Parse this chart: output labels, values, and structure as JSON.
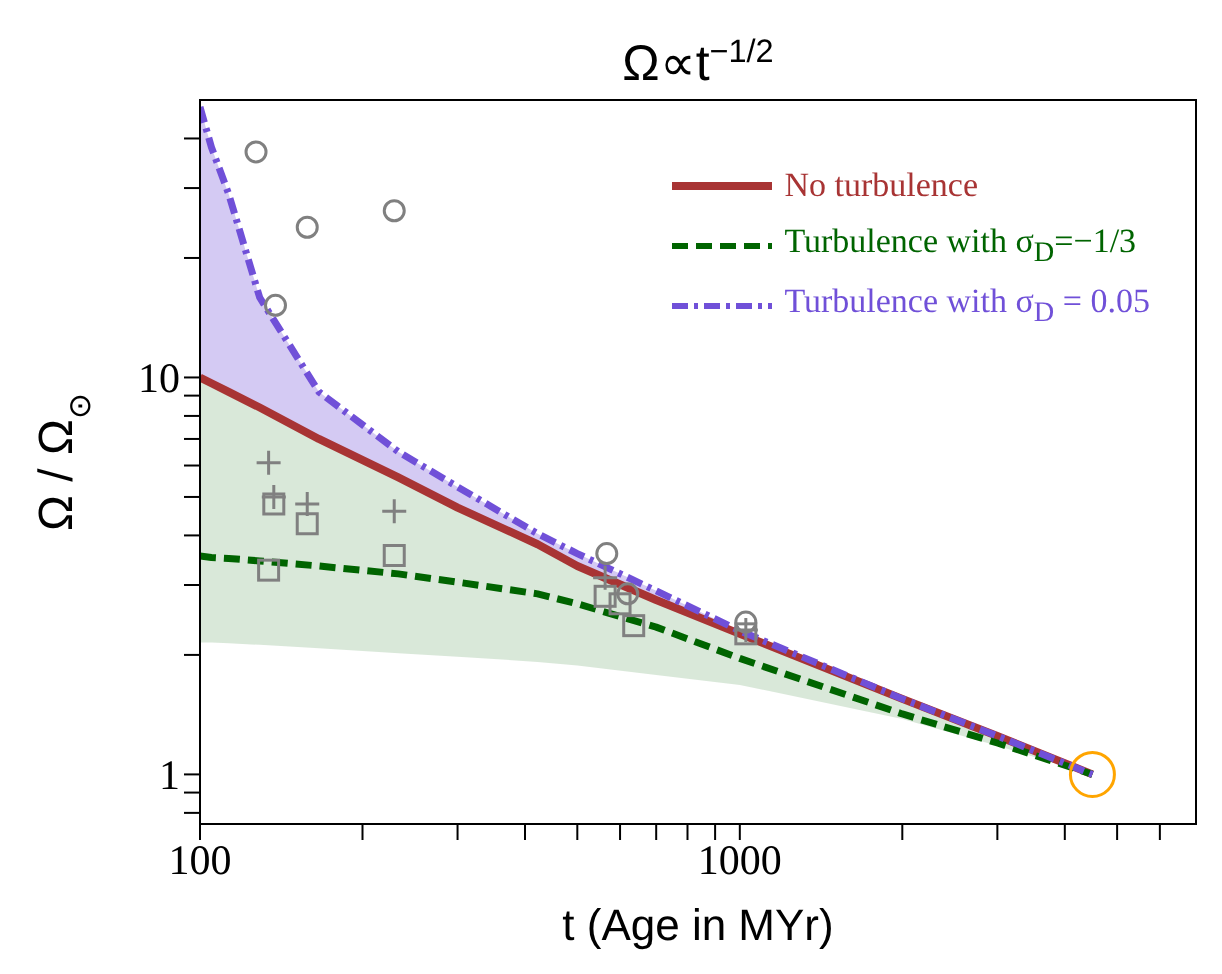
{
  "chart_data": {
    "type": "line",
    "title": "Ω∝t$^{−1/2}$",
    "xlabel": "t (Age in MYr)",
    "ylabel": "Ω / Ω$_{⊙}$",
    "log": "xy",
    "grid": false,
    "legend": "top right",
    "xlim": [
      100,
      7000
    ],
    "ylim": [
      0.75,
      50
    ],
    "xticks": [
      100,
      {
        "value": 200,
        "label": null
      },
      {
        "value": 300,
        "label": null
      },
      {
        "value": 400,
        "label": null
      },
      {
        "value": 500,
        "label": null
      },
      {
        "value": 600,
        "label": null
      },
      {
        "value": 700,
        "label": null
      },
      {
        "value": 800,
        "label": null
      },
      {
        "value": 900,
        "label": null
      },
      1000,
      {
        "value": 2000,
        "label": null
      },
      {
        "value": 3000,
        "label": null
      },
      {
        "value": 4000,
        "label": null
      },
      {
        "value": 5000,
        "label": null
      },
      {
        "value": 6000,
        "label": null
      }
    ],
    "yticks": [
      {
        "value": 0.8,
        "label": null
      },
      {
        "value": 0.9,
        "label": null
      },
      1,
      {
        "value": 2,
        "label": null
      },
      {
        "value": 3,
        "label": null
      },
      {
        "value": 4,
        "label": null
      },
      {
        "value": 5,
        "label": null
      },
      {
        "value": 6,
        "label": null
      },
      {
        "value": 7,
        "label": null
      },
      {
        "value": 8,
        "label": null
      },
      {
        "value": 9,
        "label": null
      },
      10,
      {
        "value": 20,
        "label": null
      },
      {
        "value": 30,
        "label": null
      },
      {
        "value": 40,
        "label": null
      }
    ],
    "x": [
      100,
      105,
      113,
      129,
      166,
      233,
      300,
      422,
      500,
      700,
      1000,
      2000,
      3000,
      4500
    ],
    "series": [
      {
        "name": "No turbulence",
        "color": "#a83434",
        "line_style": "solid",
        "marker": "none",
        "values": [
          10,
          9.67,
          9.2,
          8.4,
          7.0,
          5.6,
          4.7,
          3.8,
          3.35,
          2.75,
          2.26,
          1.55,
          1.25,
          1.0
        ]
      },
      {
        "name": "Turbulence with σ$_{D}$=−1/3",
        "color": "#006400",
        "line_style": "dashed",
        "marker": "none",
        "values": [
          3.55,
          3.52,
          3.5,
          3.45,
          3.35,
          3.2,
          3.05,
          2.85,
          2.69,
          2.35,
          1.96,
          1.42,
          1.2,
          1.0
        ],
        "lower": [
          2.15,
          2.15,
          2.14,
          2.12,
          2.08,
          2.02,
          1.98,
          1.92,
          1.88,
          1.78,
          1.68,
          1.38,
          1.18,
          1.0
        ],
        "upper": [
          10,
          9.67,
          9.2,
          8.4,
          7.0,
          5.6,
          4.7,
          3.8,
          3.35,
          2.75,
          2.26,
          1.55,
          1.25,
          1.0
        ]
      },
      {
        "name": "Turbulence with σ$_{D}$ = 0.05",
        "color": "#7050d8",
        "line_style": "dashdot",
        "marker": "none",
        "values": [
          48,
          38,
          29,
          15.9,
          9.2,
          6.5,
          5.3,
          4.04,
          3.6,
          2.9,
          2.3,
          1.55,
          1.25,
          1.0
        ],
        "lower": [
          10,
          9.67,
          9.2,
          8.4,
          7.0,
          5.6,
          4.7,
          3.8,
          3.35,
          2.75,
          2.26,
          1.55,
          1.25,
          1.0
        ],
        "upper": [
          48,
          38,
          29,
          15.9,
          9.2,
          6.5,
          5.3,
          4.04,
          3.6,
          2.9,
          2.3,
          1.55,
          1.25,
          1.0
        ]
      },
      {
        "type": "scatter",
        "color": "#808080",
        "marker": "circle",
        "x": [
          127,
          158,
          229,
          138,
          567,
          620,
          1026
        ],
        "values": [
          37,
          23.9,
          26.3,
          15.2,
          3.6,
          2.85,
          2.42
        ]
      },
      {
        "type": "scatter",
        "color": "#808080",
        "marker": "cross",
        "x": [
          134,
          137,
          158,
          229,
          563,
          1026
        ],
        "values": [
          6.1,
          5.0,
          4.8,
          4.6,
          3.13,
          2.31
        ]
      },
      {
        "type": "scatter",
        "color": "#808080",
        "marker": "square",
        "x": [
          137,
          158,
          134,
          229,
          563,
          600,
          636,
          1026
        ],
        "values": [
          4.8,
          4.28,
          3.27,
          3.56,
          2.81,
          2.69,
          2.37,
          2.26
        ]
      },
      {
        "type": "scatter",
        "color": "#ffa500",
        "marker": "circle",
        "x": [
          4500
        ],
        "values": [
          1.0
        ]
      }
    ]
  }
}
